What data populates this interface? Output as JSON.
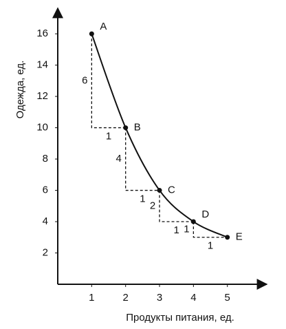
{
  "chart_data": {
    "type": "line",
    "x_label": "Продукты питания, ед.",
    "y_label": "Одежда, ед.",
    "x": [
      1,
      2,
      3,
      4,
      5
    ],
    "series": [
      {
        "values": [
          16,
          10,
          6,
          4,
          3
        ],
        "color": "#111111"
      }
    ],
    "point_labels": [
      "A",
      "B",
      "C",
      "D",
      "E"
    ],
    "steps": [
      {
        "dy": 6,
        "dx": 1
      },
      {
        "dy": 4,
        "dx": 1
      },
      {
        "dy": 2,
        "dx": 1
      },
      {
        "dy": 1,
        "dx": 1
      }
    ],
    "xlim": [
      0,
      6.1
    ],
    "ylim": [
      0,
      17.5
    ],
    "xticks": [
      1,
      2,
      3,
      4,
      5
    ],
    "yticks": [
      2,
      4,
      6,
      8,
      10,
      12,
      14,
      16
    ]
  }
}
